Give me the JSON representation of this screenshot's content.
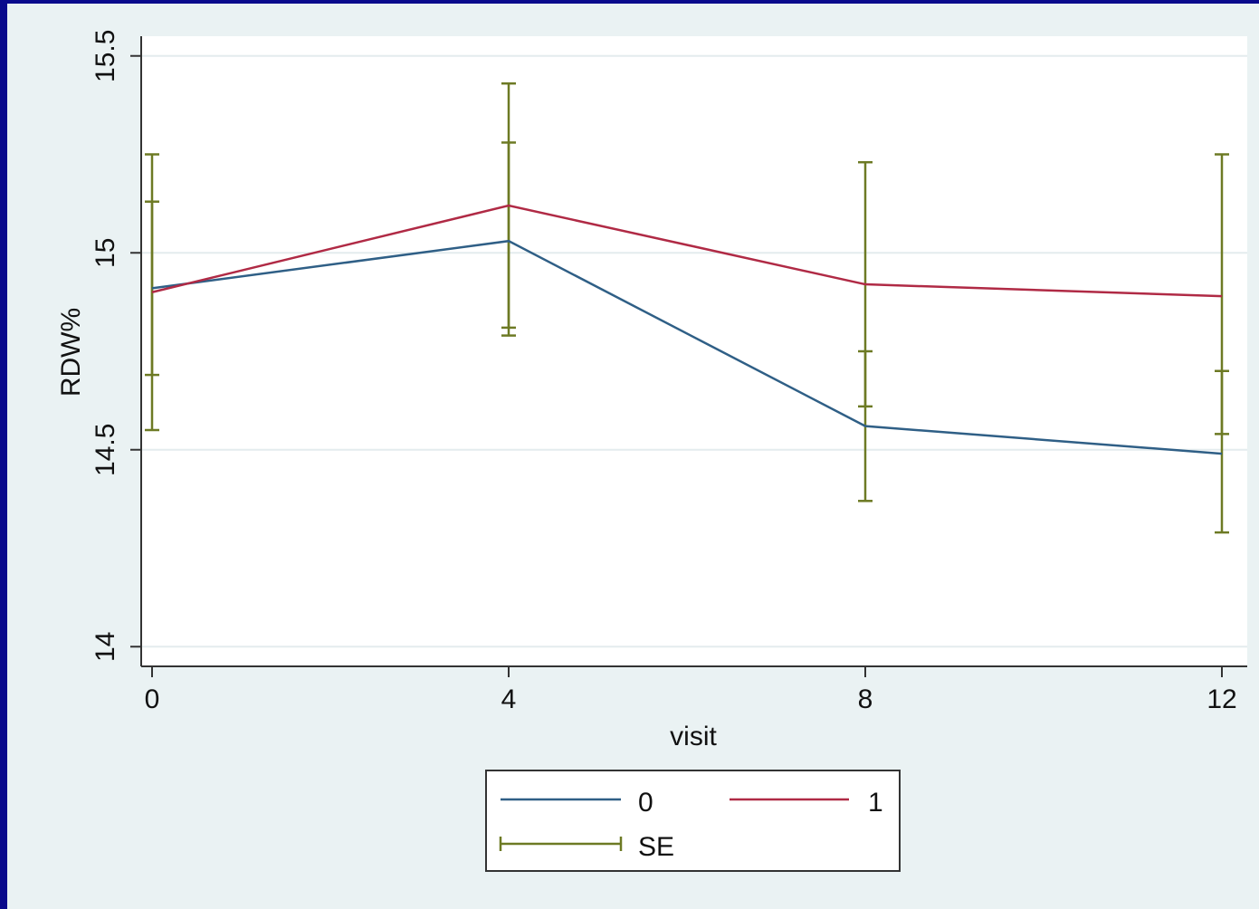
{
  "chart_data": {
    "type": "line",
    "title": "",
    "xlabel": "visit",
    "ylabel": "RDW%",
    "x": [
      0,
      4,
      8,
      12
    ],
    "x_ticks": [
      "0",
      "4",
      "8",
      "12"
    ],
    "xlim": [
      0,
      12
    ],
    "y_ticks": [
      "14",
      "14.5",
      "15",
      "15.5"
    ],
    "y_tick_values": [
      14,
      14.5,
      15,
      15.5
    ],
    "ylim": [
      13.95,
      15.55
    ],
    "grid": true,
    "legend_position": "bottom-center",
    "series": [
      {
        "name": "0",
        "color": "#2f5f86",
        "values": [
          14.91,
          15.03,
          14.56,
          14.49
        ],
        "se_low": [
          14.69,
          14.81,
          14.37,
          14.29
        ],
        "se_high": [
          15.13,
          15.28,
          14.75,
          14.7
        ]
      },
      {
        "name": "1",
        "color": "#b02a45",
        "values": [
          14.9,
          15.12,
          14.92,
          14.89
        ],
        "se_low": [
          14.55,
          14.79,
          14.61,
          14.54
        ],
        "se_high": [
          15.25,
          15.43,
          15.23,
          15.25
        ]
      }
    ],
    "error_bars": {
      "name": "SE",
      "color": "#6d7a24"
    }
  }
}
